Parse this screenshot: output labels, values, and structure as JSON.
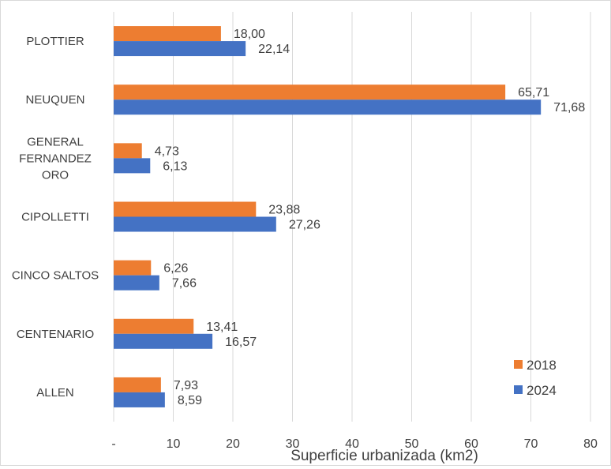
{
  "chart_data": {
    "type": "bar",
    "orientation": "horizontal",
    "title": "",
    "xlabel": "Superficie urbanizada (km2)",
    "ylabel": "",
    "categories": [
      "PLOTTIER",
      "NEUQUEN",
      "GENERAL FERNANDEZ ORO",
      "CIPOLLETTI",
      "CINCO SALTOS",
      "CENTENARIO",
      "ALLEN"
    ],
    "category_lines": [
      [
        "PLOTTIER"
      ],
      [
        "NEUQUEN"
      ],
      [
        "GENERAL",
        "FERNANDEZ",
        "ORO"
      ],
      [
        "CIPOLLETTI"
      ],
      [
        "CINCO SALTOS"
      ],
      [
        "CENTENARIO"
      ],
      [
        "ALLEN"
      ]
    ],
    "series": [
      {
        "name": "2018",
        "color": "#ED7D31",
        "values": [
          18.0,
          65.71,
          4.73,
          23.88,
          6.26,
          13.41,
          7.93
        ],
        "labels": [
          "18,00",
          "65,71",
          "4,73",
          "23,88",
          "6,26",
          "13,41",
          "7,93"
        ]
      },
      {
        "name": "2024",
        "color": "#4472C4",
        "values": [
          22.14,
          71.68,
          6.13,
          27.26,
          7.66,
          16.57,
          8.59
        ],
        "labels": [
          "22,14",
          "71,68",
          "6,13",
          "27,26",
          "7,66",
          "16,57",
          "8,59"
        ]
      }
    ],
    "xlim": [
      0,
      80
    ],
    "x_ticks": [
      0,
      10,
      20,
      30,
      40,
      50,
      60,
      70,
      80
    ],
    "x_tick_labels": [
      "-",
      "10",
      "20",
      "30",
      "40",
      "50",
      "60",
      "70",
      "80"
    ],
    "grid": "vertical",
    "grid_color": "#d9d9d9",
    "legend_position": "bottom-right",
    "text_color": "#404040"
  }
}
